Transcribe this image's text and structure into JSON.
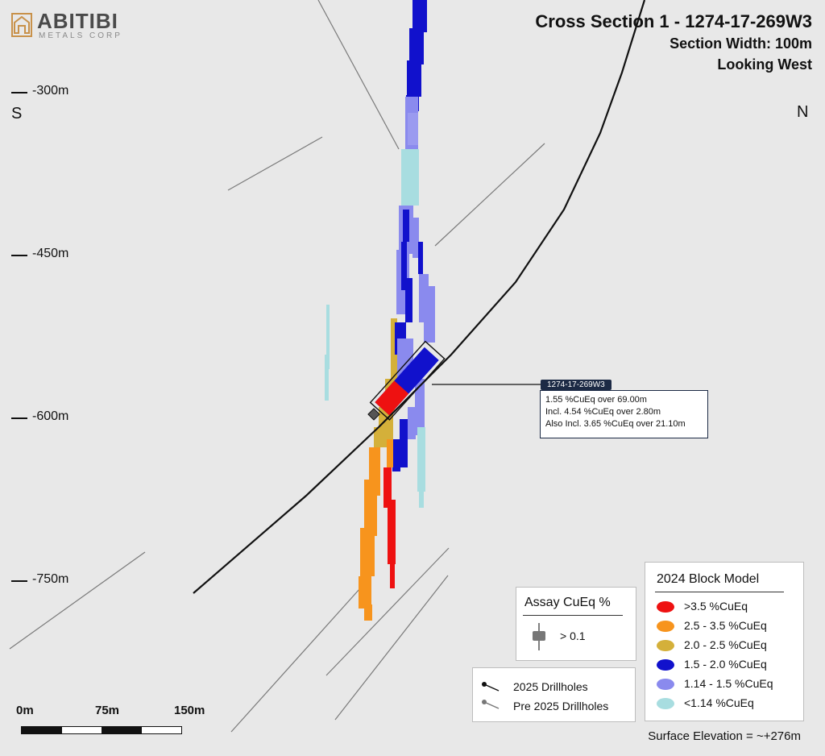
{
  "logo": {
    "name": "ABITIBI",
    "subtitle": "METALS CORP",
    "color": "#c8914a"
  },
  "header": {
    "title": "Cross Section 1 - 1274-17-269W3",
    "section_width": "Section Width: 100m",
    "view": "Looking West"
  },
  "directions": {
    "left": "S",
    "right": "N"
  },
  "elevations": [
    "-300m",
    "-450m",
    "-600m",
    "-750m"
  ],
  "callout": {
    "tag": "1274-17-269W3",
    "line1": "1.55 %CuEq over 69.00m",
    "line2": "Incl. 4.54 %CuEq over 2.80m",
    "line3": "Also Incl. 3.65 %CuEq over 21.10m"
  },
  "block_model_legend": {
    "title": "2024 Block Model",
    "items": [
      {
        "label": ">3.5 %CuEq",
        "color": "#ee1111"
      },
      {
        "label": "2.5 - 3.5 %CuEq",
        "color": "#f7941d"
      },
      {
        "label": "2.0 - 2.5 %CuEq",
        "color": "#d4b03a"
      },
      {
        "label": "1.5 - 2.0 %CuEq",
        "color": "#1111cc"
      },
      {
        "label": "1.14 - 1.5 %CuEq",
        "color": "#8a8aee"
      },
      {
        "label": "<1.14 %CuEq",
        "color": "#a8dde0"
      }
    ]
  },
  "assay_legend": {
    "title": "Assay CuEq %",
    "item": "> 0.1"
  },
  "drillhole_legend": {
    "current": "2025 Drillholes",
    "previous": "Pre 2025 Drillholes"
  },
  "scale_bar": {
    "labels": [
      "0m",
      "75m",
      "150m"
    ]
  },
  "surface_elevation": "Surface Elevation = ~+276m"
}
